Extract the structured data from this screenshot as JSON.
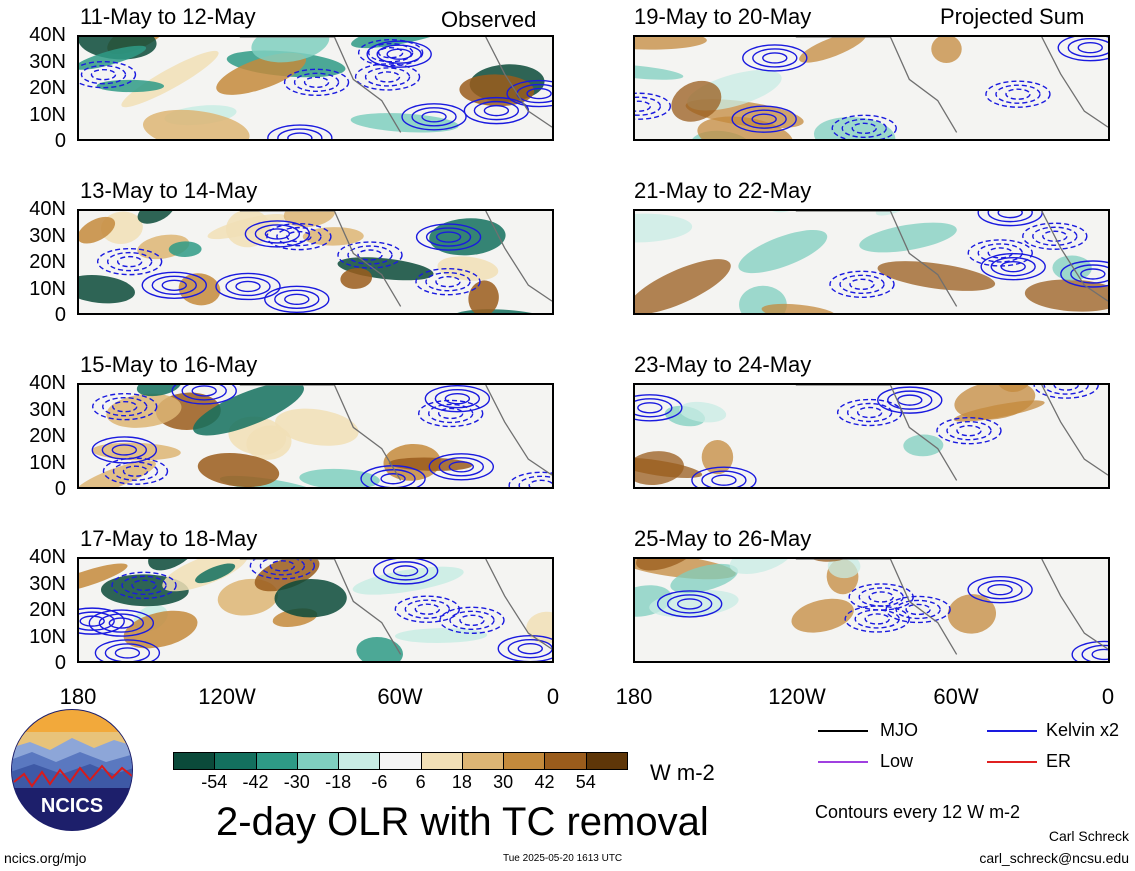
{
  "panels": {
    "left": [
      {
        "title": "11-May to 12-May",
        "tag": "Observed"
      },
      {
        "title": "13-May to 14-May",
        "tag": ""
      },
      {
        "title": "15-May to 16-May",
        "tag": ""
      },
      {
        "title": "17-May to 18-May",
        "tag": ""
      }
    ],
    "right": [
      {
        "title": "19-May to 20-May",
        "tag": "Projected Sum"
      },
      {
        "title": "21-May to 22-May",
        "tag": ""
      },
      {
        "title": "23-May to 24-May",
        "tag": ""
      },
      {
        "title": "25-May to 26-May",
        "tag": ""
      }
    ]
  },
  "y_ticks": [
    "40N",
    "30N",
    "20N",
    "10N",
    "0"
  ],
  "x_ticks": [
    "180",
    "120W",
    "60W",
    "0"
  ],
  "legend": {
    "items": [
      {
        "label": "MJO",
        "color": "#000000"
      },
      {
        "label": "Kelvin x2",
        "color": "#1a1adf"
      },
      {
        "label": "Low",
        "color": "#a040e0"
      },
      {
        "label": "ER",
        "color": "#e02020"
      }
    ],
    "contour_note": "Contours every 12 W m-2"
  },
  "colorbar": {
    "labels": [
      "-54",
      "-42",
      "-30",
      "-18",
      "-6",
      "6",
      "18",
      "30",
      "42",
      "54"
    ],
    "colors": [
      "#0b4a3a",
      "#13705e",
      "#2e9a86",
      "#7fcfbf",
      "#c8ece4",
      "#f5f5f5",
      "#f1dfb6",
      "#ddb574",
      "#c48a3c",
      "#9a5c1c",
      "#5e3608"
    ],
    "units": "W m-2"
  },
  "main_title": "2-day OLR with TC removal",
  "logo": {
    "text": "NCICS"
  },
  "footer": {
    "url": "ncics.org/mjo",
    "timestamp": "Tue 2025-05-20 1613 UTC",
    "author": "Carl Schreck",
    "email": "carl_schreck@ncsu.edu"
  }
}
